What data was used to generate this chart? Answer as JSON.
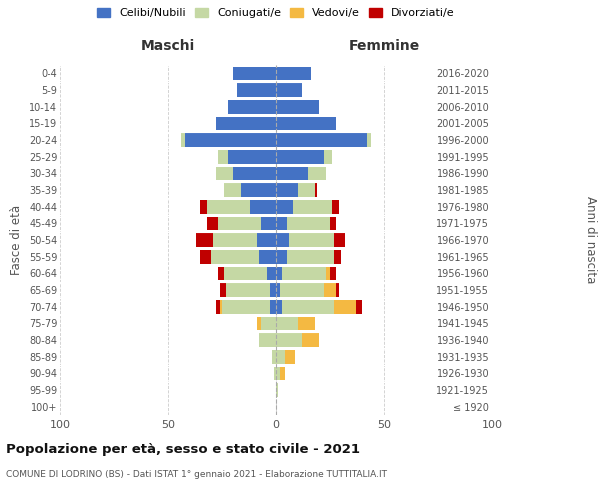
{
  "age_groups": [
    "100+",
    "95-99",
    "90-94",
    "85-89",
    "80-84",
    "75-79",
    "70-74",
    "65-69",
    "60-64",
    "55-59",
    "50-54",
    "45-49",
    "40-44",
    "35-39",
    "30-34",
    "25-29",
    "20-24",
    "15-19",
    "10-14",
    "5-9",
    "0-4"
  ],
  "birth_years": [
    "≤ 1920",
    "1921-1925",
    "1926-1930",
    "1931-1935",
    "1936-1940",
    "1941-1945",
    "1946-1950",
    "1951-1955",
    "1956-1960",
    "1961-1965",
    "1966-1970",
    "1971-1975",
    "1976-1980",
    "1981-1985",
    "1986-1990",
    "1991-1995",
    "1996-2000",
    "2001-2005",
    "2006-2010",
    "2011-2015",
    "2016-2020"
  ],
  "male": {
    "celibi": [
      0,
      0,
      0,
      0,
      0,
      0,
      3,
      3,
      4,
      8,
      9,
      7,
      12,
      16,
      20,
      22,
      42,
      28,
      22,
      18,
      20
    ],
    "coniugati": [
      0,
      0,
      1,
      2,
      8,
      7,
      22,
      20,
      20,
      22,
      20,
      20,
      20,
      8,
      8,
      5,
      2,
      0,
      0,
      0,
      0
    ],
    "vedovi": [
      0,
      0,
      0,
      0,
      0,
      2,
      1,
      0,
      0,
      0,
      0,
      0,
      0,
      0,
      0,
      0,
      0,
      0,
      0,
      0,
      0
    ],
    "divorziati": [
      0,
      0,
      0,
      0,
      0,
      0,
      2,
      3,
      3,
      5,
      8,
      5,
      3,
      0,
      0,
      0,
      0,
      0,
      0,
      0,
      0
    ]
  },
  "female": {
    "nubili": [
      0,
      0,
      0,
      0,
      0,
      0,
      3,
      2,
      3,
      5,
      6,
      5,
      8,
      10,
      15,
      22,
      42,
      28,
      20,
      12,
      16
    ],
    "coniugate": [
      0,
      1,
      2,
      4,
      12,
      10,
      24,
      20,
      20,
      22,
      21,
      20,
      18,
      8,
      8,
      4,
      2,
      0,
      0,
      0,
      0
    ],
    "vedove": [
      0,
      0,
      2,
      5,
      8,
      8,
      10,
      6,
      2,
      0,
      0,
      0,
      0,
      0,
      0,
      0,
      0,
      0,
      0,
      0,
      0
    ],
    "divorziate": [
      0,
      0,
      0,
      0,
      0,
      0,
      3,
      1,
      3,
      3,
      5,
      3,
      3,
      1,
      0,
      0,
      0,
      0,
      0,
      0,
      0
    ]
  },
  "colors": {
    "celibi": "#4472C4",
    "coniugati": "#c5d8a4",
    "vedovi": "#f4b942",
    "divorziati": "#c00000"
  },
  "title": "Popolazione per età, sesso e stato civile - 2021",
  "subtitle": "COMUNE DI LODRINO (BS) - Dati ISTAT 1° gennaio 2021 - Elaborazione TUTTITALIA.IT",
  "xlabel_left": "Maschi",
  "xlabel_right": "Femmine",
  "ylabel_left": "Fasce di età",
  "ylabel_right": "Anni di nascita",
  "xlim": 100,
  "legend_labels": [
    "Celibi/Nubili",
    "Coniugati/e",
    "Vedovi/e",
    "Divorziati/e"
  ],
  "bg_color": "#ffffff",
  "grid_color": "#cccccc"
}
